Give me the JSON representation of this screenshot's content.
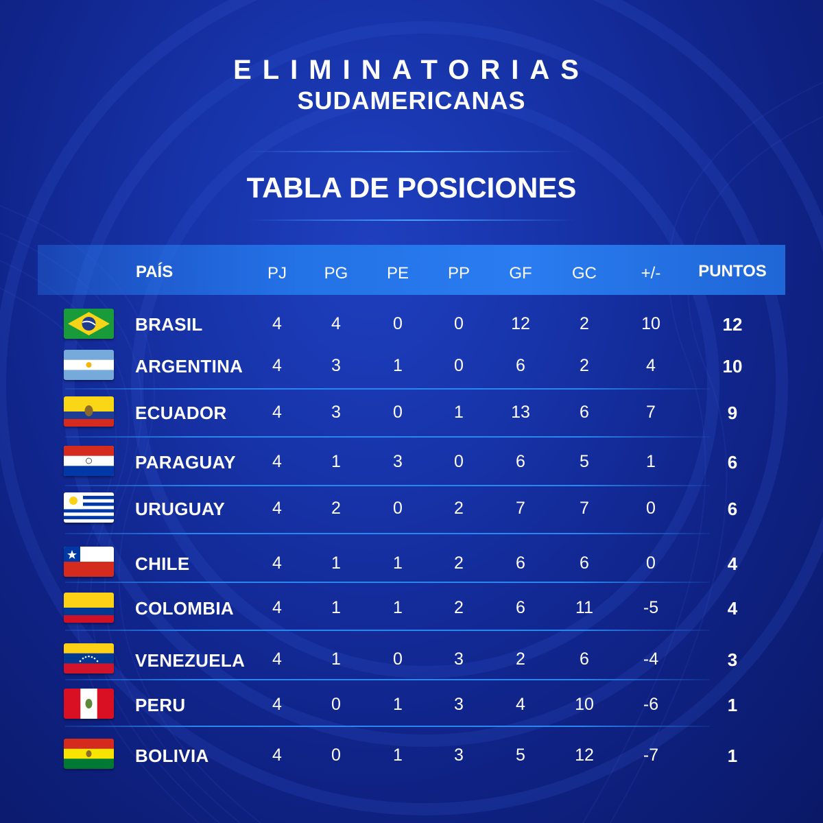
{
  "header": {
    "title_line1": "ELIMINATORIAS",
    "title_line2": "SUDAMERICANAS",
    "subtitle": "TABLA DE POSICIONES"
  },
  "table": {
    "columns": [
      "PAÍS",
      "PJ",
      "PG",
      "PE",
      "PP",
      "GF",
      "GC",
      "+/-",
      "PUNTOS"
    ],
    "rows": [
      {
        "country": "BRASIL",
        "flag": "brazil-flag",
        "pj": "4",
        "pg": "4",
        "pe": "0",
        "pp": "0",
        "gf": "12",
        "gc": "2",
        "diff": "10",
        "puntos": "12"
      },
      {
        "country": "ARGENTINA",
        "flag": "argentina-flag",
        "pj": "4",
        "pg": "3",
        "pe": "1",
        "pp": "0",
        "gf": "6",
        "gc": "2",
        "diff": "4",
        "puntos": "10"
      },
      {
        "country": "ECUADOR",
        "flag": "ecuador-flag",
        "pj": "4",
        "pg": "3",
        "pe": "0",
        "pp": "1",
        "gf": "13",
        "gc": "6",
        "diff": "7",
        "puntos": "9"
      },
      {
        "country": "PARAGUAY",
        "flag": "paraguay-flag",
        "pj": "4",
        "pg": "1",
        "pe": "3",
        "pp": "0",
        "gf": "6",
        "gc": "5",
        "diff": "1",
        "puntos": "6"
      },
      {
        "country": "URUGUAY",
        "flag": "uruguay-flag",
        "pj": "4",
        "pg": "2",
        "pe": "0",
        "pp": "2",
        "gf": "7",
        "gc": "7",
        "diff": "0",
        "puntos": "6"
      },
      {
        "country": "CHILE",
        "flag": "chile-flag",
        "pj": "4",
        "pg": "1",
        "pe": "1",
        "pp": "2",
        "gf": "6",
        "gc": "6",
        "diff": "0",
        "puntos": "4"
      },
      {
        "country": "COLOMBIA",
        "flag": "colombia-flag",
        "pj": "4",
        "pg": "1",
        "pe": "1",
        "pp": "2",
        "gf": "6",
        "gc": "11",
        "diff": "-5",
        "puntos": "4"
      },
      {
        "country": "VENEZUELA",
        "flag": "venezuela-flag",
        "pj": "4",
        "pg": "1",
        "pe": "0",
        "pp": "3",
        "gf": "2",
        "gc": "6",
        "diff": "-4",
        "puntos": "3"
      },
      {
        "country": "PERU",
        "flag": "peru-flag",
        "pj": "4",
        "pg": "0",
        "pe": "1",
        "pp": "3",
        "gf": "4",
        "gc": "10",
        "diff": "-6",
        "puntos": "1"
      },
      {
        "country": "BOLIVIA",
        "flag": "bolivia-flag",
        "pj": "4",
        "pg": "0",
        "pe": "1",
        "pp": "3",
        "gf": "5",
        "gc": "12",
        "diff": "-7",
        "puntos": "1"
      }
    ]
  },
  "colors": {
    "background": "#1733a8",
    "header_bar": "#2a7cf0",
    "separator": "#2a86f0",
    "text": "#ffffff"
  }
}
